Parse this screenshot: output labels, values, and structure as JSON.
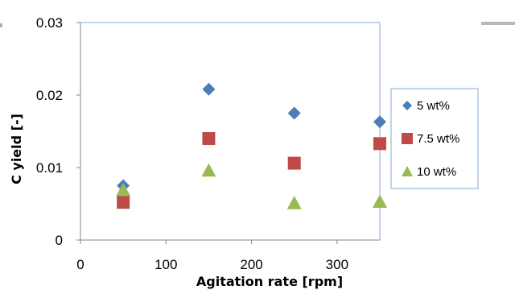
{
  "chart_data": {
    "type": "scatter",
    "title": "",
    "xlabel": "Agitation rate [rpm]",
    "ylabel": "C yield [-]",
    "xlim": [
      0,
      350
    ],
    "ylim": [
      0,
      0.03
    ],
    "xticks": [
      0,
      100,
      200,
      300
    ],
    "yticks": [
      0,
      0.01,
      0.02,
      0.03
    ],
    "xtick_labels": [
      "0",
      "100",
      "200",
      "300"
    ],
    "ytick_labels": [
      "0",
      "0.01",
      "0.02",
      "0.03"
    ],
    "grid": false,
    "legend_position": "right",
    "series": [
      {
        "name": "5 wt%",
        "marker": "diamond",
        "color": "#4a7ebb",
        "x": [
          50,
          150,
          250,
          350
        ],
        "y": [
          0.0075,
          0.0208,
          0.0175,
          0.0163
        ]
      },
      {
        "name": "7.5 wt%",
        "marker": "square",
        "color": "#be4b48",
        "x": [
          50,
          150,
          250,
          350
        ],
        "y": [
          0.0052,
          0.014,
          0.0106,
          0.0133
        ]
      },
      {
        "name": "10 wt%",
        "marker": "triangle",
        "color": "#98b954",
        "x": [
          50,
          150,
          250,
          350
        ],
        "y": [
          0.0069,
          0.0096,
          0.0051,
          0.0053
        ]
      }
    ]
  }
}
